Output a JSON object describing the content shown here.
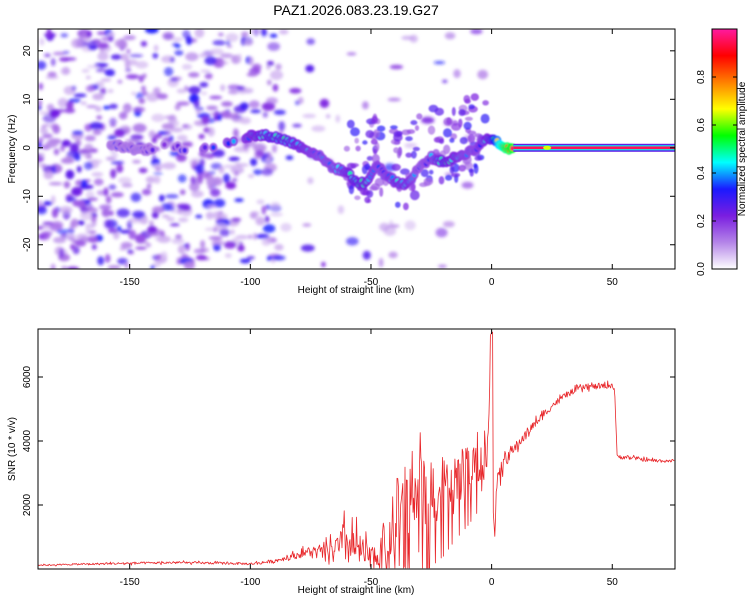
{
  "title": "PAZ1.2026.083.23.19.G27",
  "chart_data": [
    {
      "type": "heatmap",
      "xlabel": "Height of straight line (km)",
      "ylabel": "Frequency (Hz)",
      "xlim": [
        -188,
        76
      ],
      "ylim": [
        -25,
        24.5
      ],
      "xticks": [
        -150,
        -100,
        -50,
        0,
        50
      ],
      "xtick_labels": [
        "-150",
        "-100",
        "-50",
        "0",
        "50"
      ],
      "yticks": [
        -20,
        -10,
        0,
        10,
        20
      ],
      "ytick_labels": [
        "-20",
        "-10",
        "0",
        "10",
        "20"
      ],
      "colorbar": {
        "label": "Normalized spectral amplitude",
        "range": [
          0,
          1
        ],
        "ticks": [
          0,
          0.2,
          0.4,
          0.6,
          0.8
        ],
        "tick_labels": [
          "0.0",
          "0.2",
          "0.4",
          "0.6",
          "0.8"
        ],
        "colors": [
          "#ffffff",
          "#b484e8",
          "#7a1ee0",
          "#1a1aff",
          "#00ffff",
          "#00ff00",
          "#ffff00",
          "#ff8000",
          "#ff0000",
          "#ff1aa0"
        ]
      },
      "ridge": {
        "height_km": [
          -155,
          -145,
          -135,
          -125,
          -110,
          -100,
          -92,
          -85,
          -78,
          -72,
          -66,
          -60,
          -56,
          -52,
          -48,
          -44,
          -40,
          -35,
          -30,
          -25,
          -20,
          -15,
          -10,
          -6,
          -3,
          0,
          3,
          6,
          10,
          20,
          30,
          40,
          50,
          60,
          76
        ],
        "frequency_hz": [
          0.5,
          -0.5,
          0.5,
          -0.5,
          1,
          2.5,
          2.5,
          1.5,
          0,
          -1.5,
          -4,
          -5,
          -7,
          -7.5,
          -3.5,
          -5.5,
          -7,
          -7.5,
          -4,
          -2,
          -3,
          -2,
          -1,
          0,
          1.5,
          2,
          1,
          0,
          0,
          0,
          0,
          0,
          0,
          0,
          0
        ],
        "amplitude": [
          0.2,
          0.2,
          0.18,
          0.2,
          0.3,
          0.35,
          0.4,
          0.4,
          0.35,
          0.3,
          0.3,
          0.35,
          0.4,
          0.38,
          0.3,
          0.3,
          0.35,
          0.35,
          0.25,
          0.3,
          0.4,
          0.35,
          0.3,
          0.3,
          0.35,
          0.4,
          0.7,
          0.85,
          0.92,
          0.95,
          0.95,
          0.95,
          0.95,
          0.95,
          0.95
        ]
      }
    },
    {
      "type": "line",
      "xlabel": "Height of straight line (km)",
      "ylabel": "SNR (10 * v/v)",
      "xlim": [
        -188,
        76
      ],
      "ylim": [
        0,
        7500
      ],
      "xticks": [
        -150,
        -100,
        -50,
        0,
        50
      ],
      "xtick_labels": [
        "-150",
        "-100",
        "-50",
        "0",
        "50"
      ],
      "yticks": [
        2000,
        4000,
        6000
      ],
      "ytick_labels": [
        "2000",
        "4000",
        "6000"
      ],
      "color": "#e8262a",
      "series": [
        {
          "name": "SNR",
          "x": [
            -188,
            -170,
            -150,
            -130,
            -110,
            -100,
            -90,
            -80,
            -75,
            -70,
            -65,
            -60,
            -55,
            -50,
            -45,
            -40,
            -35,
            -30,
            -25,
            -20,
            -15,
            -10,
            -5,
            -2,
            0,
            1,
            2,
            5,
            10,
            15,
            20,
            25,
            30,
            35,
            40,
            45,
            50,
            51,
            52,
            55,
            60,
            65,
            70,
            76
          ],
          "y": [
            120,
            150,
            180,
            200,
            180,
            160,
            250,
            450,
            550,
            500,
            650,
            800,
            600,
            300,
            600,
            1500,
            2200,
            2400,
            2500,
            2600,
            2900,
            3100,
            3400,
            3300,
            7400,
            700,
            2500,
            3400,
            3800,
            4300,
            4700,
            5100,
            5400,
            5600,
            5700,
            5700,
            5750,
            5600,
            3500,
            3500,
            3450,
            3400,
            3380,
            3380
          ],
          "noise_envelope": [
            20,
            30,
            40,
            40,
            40,
            40,
            60,
            120,
            200,
            250,
            350,
            800,
            600,
            400,
            900,
            1400,
            1300,
            1200,
            1100,
            1000,
            900,
            800,
            700,
            600,
            0,
            0,
            400,
            300,
            200,
            150,
            150,
            120,
            100,
            100,
            100,
            100,
            100,
            0,
            80,
            80,
            60,
            60,
            60,
            60
          ]
        }
      ]
    }
  ]
}
